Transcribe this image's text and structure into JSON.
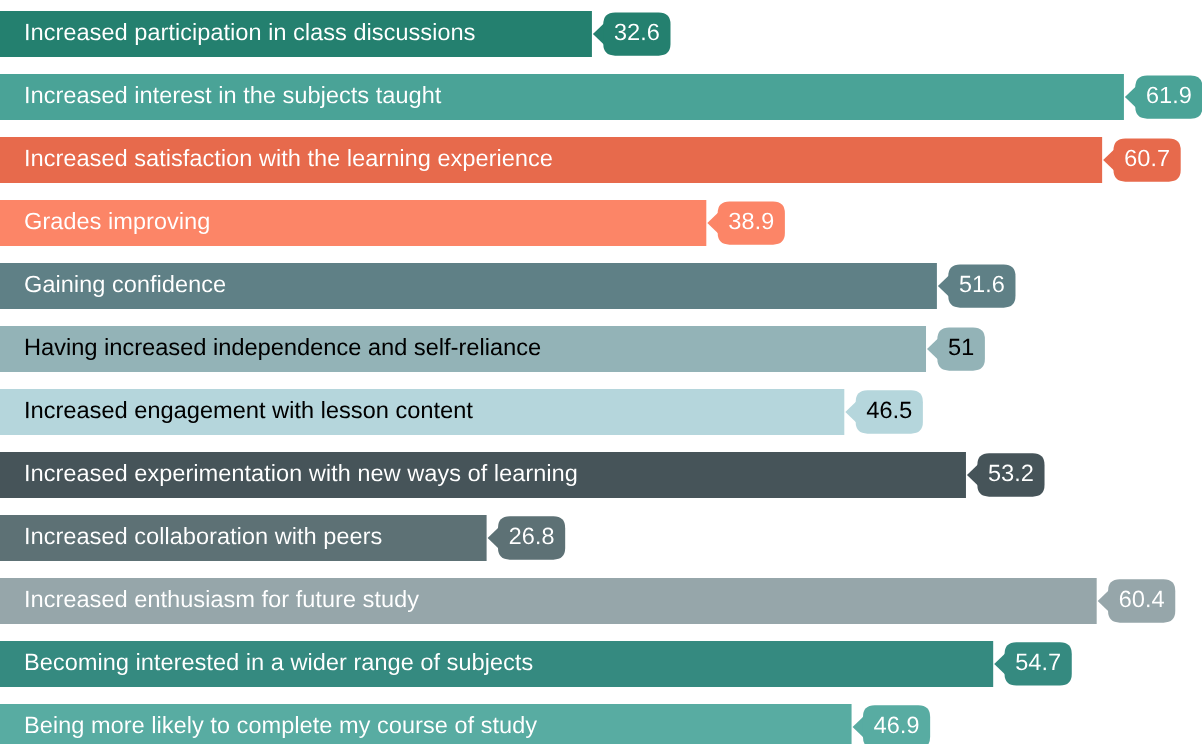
{
  "chart_data": {
    "type": "bar",
    "orientation": "horizontal",
    "data_labels": true,
    "xlim": [
      0,
      66.2
    ],
    "categories": [
      "Increased participation in class discussions",
      "Increased interest in the subjects taught",
      "Increased satisfaction with the learning experience",
      "Grades improving",
      "Gaining confidence",
      "Having increased independence and self-reliance",
      "Increased engagement with lesson content",
      "Increased experimentation with new ways of learning",
      "Increased collaboration with peers",
      "Increased enthusiasm for future study",
      "Becoming interested in a wider range of subjects",
      "Being more likely to complete my course of study"
    ],
    "values": [
      32.6,
      61.9,
      60.7,
      38.9,
      51.6,
      51,
      46.5,
      53.2,
      26.8,
      60.4,
      54.7,
      46.9
    ],
    "colors": [
      "#24806f",
      "#4aa397",
      "#e76a4c",
      "#fc8567",
      "#5f8086",
      "#93b3b7",
      "#b5d6dc",
      "#465459",
      "#5d7175",
      "#96a6aa",
      "#358a80",
      "#58aca2"
    ]
  }
}
